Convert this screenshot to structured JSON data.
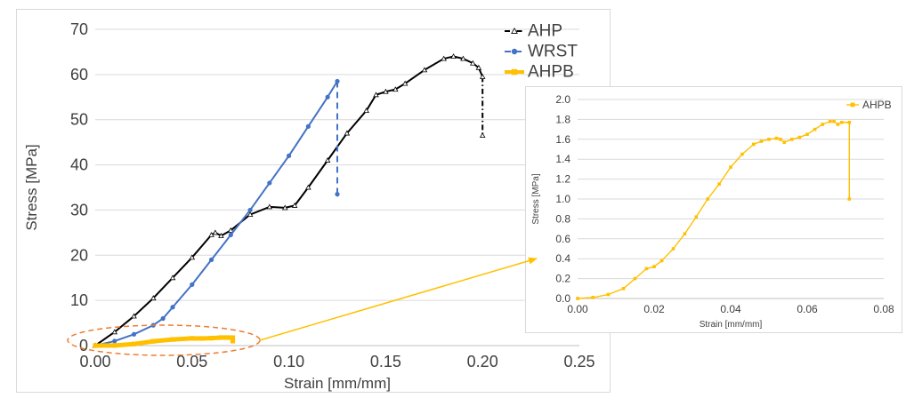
{
  "chart_data": [
    {
      "type": "line",
      "title": "",
      "xlabel": "Strain [mm/mm]",
      "ylabel": "Stress [MPa]",
      "xlim": [
        0,
        0.25
      ],
      "ylim": [
        0,
        70
      ],
      "x_ticks": [
        "0.00",
        "0.05",
        "0.10",
        "0.15",
        "0.20",
        "0.25"
      ],
      "y_ticks": [
        "0",
        "10",
        "20",
        "30",
        "40",
        "50",
        "60",
        "70"
      ],
      "grid": "horizontal",
      "legend_position": "top-right",
      "series": [
        {
          "name": "AHP",
          "color": "#000000",
          "marker": "triangle-open",
          "line_style": "dash-dot",
          "points": [
            [
              0,
              0
            ],
            [
              0.01,
              3
            ],
            [
              0.02,
              6.5
            ],
            [
              0.03,
              10.5
            ],
            [
              0.04,
              15
            ],
            [
              0.05,
              19.5
            ],
            [
              0.06,
              24.5
            ],
            [
              0.062,
              25
            ],
            [
              0.065,
              24.3
            ],
            [
              0.07,
              25.5
            ],
            [
              0.08,
              29
            ],
            [
              0.09,
              30.7
            ],
            [
              0.098,
              30.5
            ],
            [
              0.103,
              31
            ],
            [
              0.11,
              35
            ],
            [
              0.12,
              41
            ],
            [
              0.13,
              47
            ],
            [
              0.14,
              52
            ],
            [
              0.145,
              55.5
            ],
            [
              0.15,
              56.2
            ],
            [
              0.155,
              56.7
            ],
            [
              0.16,
              58
            ],
            [
              0.17,
              61
            ],
            [
              0.18,
              63.5
            ],
            [
              0.185,
              64
            ],
            [
              0.19,
              63.5
            ],
            [
              0.195,
              62.5
            ],
            [
              0.198,
              61.5
            ],
            [
              0.2,
              59.5
            ],
            [
              0.2,
              46.5
            ]
          ]
        },
        {
          "name": "WRST",
          "color": "#4472c4",
          "marker": "circle",
          "line_style": "dashed",
          "points": [
            [
              0,
              0
            ],
            [
              0.01,
              1
            ],
            [
              0.02,
              2.5
            ],
            [
              0.03,
              4.5
            ],
            [
              0.035,
              6
            ],
            [
              0.04,
              8.5
            ],
            [
              0.05,
              13.5
            ],
            [
              0.06,
              19
            ],
            [
              0.07,
              24.5
            ],
            [
              0.08,
              30
            ],
            [
              0.09,
              36
            ],
            [
              0.1,
              42
            ],
            [
              0.11,
              48.5
            ],
            [
              0.12,
              55
            ],
            [
              0.125,
              58.5
            ],
            [
              0.125,
              33.5
            ]
          ]
        },
        {
          "name": "AHPB",
          "color": "#ffc000",
          "marker": "square",
          "line_style": "solid",
          "points": [
            [
              0,
              0
            ],
            [
              0.01,
              0.03
            ],
            [
              0.02,
              0.35
            ],
            [
              0.03,
              0.95
            ],
            [
              0.04,
              1.35
            ],
            [
              0.05,
              1.6
            ],
            [
              0.055,
              1.58
            ],
            [
              0.06,
              1.65
            ],
            [
              0.065,
              1.78
            ],
            [
              0.068,
              1.78
            ],
            [
              0.07,
              1.76
            ],
            [
              0.071,
              1.76
            ],
            [
              0.071,
              1.0
            ]
          ]
        }
      ]
    },
    {
      "type": "line",
      "title": "",
      "xlabel": "Strain [mm/mm]",
      "ylabel": "Stress [MPa]",
      "xlim": [
        0,
        0.08
      ],
      "ylim": [
        0,
        2
      ],
      "x_ticks": [
        "0.00",
        "0.02",
        "0.04",
        "0.06",
        "0.08"
      ],
      "y_ticks": [
        "0.0",
        "0.2",
        "0.4",
        "0.6",
        "0.8",
        "1.0",
        "1.2",
        "1.4",
        "1.6",
        "1.8",
        "2.0"
      ],
      "grid": "horizontal",
      "legend_position": "top-right",
      "series": [
        {
          "name": "AHPB",
          "color": "#ffc000",
          "marker": "square",
          "line_style": "solid",
          "points": [
            [
              0,
              0
            ],
            [
              0.004,
              0.01
            ],
            [
              0.008,
              0.04
            ],
            [
              0.012,
              0.1
            ],
            [
              0.015,
              0.2
            ],
            [
              0.018,
              0.3
            ],
            [
              0.02,
              0.32
            ],
            [
              0.022,
              0.38
            ],
            [
              0.025,
              0.5
            ],
            [
              0.028,
              0.65
            ],
            [
              0.031,
              0.82
            ],
            [
              0.034,
              1.0
            ],
            [
              0.037,
              1.15
            ],
            [
              0.04,
              1.32
            ],
            [
              0.043,
              1.45
            ],
            [
              0.046,
              1.55
            ],
            [
              0.048,
              1.58
            ],
            [
              0.05,
              1.6
            ],
            [
              0.052,
              1.61
            ],
            [
              0.053,
              1.6
            ],
            [
              0.054,
              1.57
            ],
            [
              0.056,
              1.6
            ],
            [
              0.058,
              1.62
            ],
            [
              0.06,
              1.65
            ],
            [
              0.062,
              1.7
            ],
            [
              0.064,
              1.75
            ],
            [
              0.066,
              1.78
            ],
            [
              0.067,
              1.78
            ],
            [
              0.068,
              1.75
            ],
            [
              0.069,
              1.77
            ],
            [
              0.071,
              1.77
            ],
            [
              0.071,
              1.0
            ]
          ]
        }
      ]
    }
  ],
  "annotation": {
    "ellipse_color": "#ed7d31",
    "arrow_color": "#ffc000"
  }
}
